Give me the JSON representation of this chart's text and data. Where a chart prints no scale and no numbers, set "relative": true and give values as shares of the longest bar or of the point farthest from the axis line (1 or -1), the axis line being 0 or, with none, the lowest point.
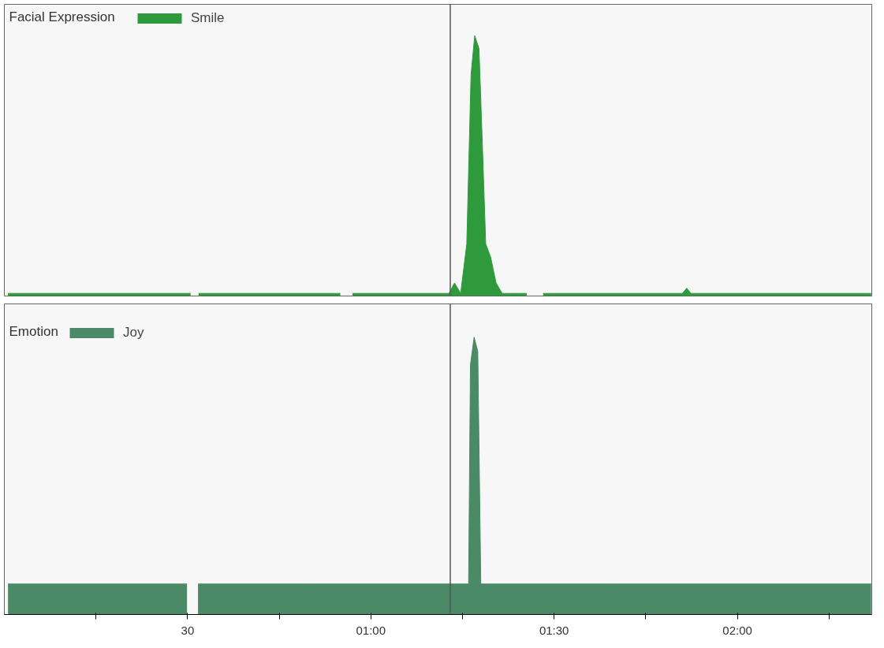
{
  "chart_data": [
    {
      "type": "area",
      "title": "Facial Expression",
      "relative": true,
      "legend": "top left",
      "tick_labels": false,
      "xlim": [
        0,
        142
      ],
      "x": [
        0.6,
        10,
        20,
        30.5,
        31.1,
        31.8,
        40,
        50,
        55,
        56,
        57,
        65,
        72.8,
        73.7,
        74.7,
        75.7,
        76.4,
        77,
        77.7,
        78.3,
        78.8,
        79.6,
        80.5,
        81.5,
        85.5,
        86.5,
        88.2,
        100,
        111,
        111.7,
        112.4,
        125,
        141.9
      ],
      "series": [
        {
          "name": "Smile",
          "color": "#2f9a3c",
          "values": [
            0.01,
            0.01,
            0.01,
            0.01,
            null,
            0.01,
            0.01,
            0.01,
            0.01,
            null,
            0.01,
            0.01,
            0.01,
            0.05,
            0.01,
            0.2,
            0.85,
            1.0,
            0.95,
            0.55,
            0.2,
            0.15,
            0.05,
            0.01,
            0.01,
            null,
            0.01,
            0.01,
            0.01,
            0.03,
            0.01,
            0.01,
            0.01
          ]
        }
      ],
      "ref_lines": [
        {
          "axis": "x",
          "value": 73,
          "color": "#555555"
        }
      ]
    },
    {
      "type": "area",
      "title": "Emotion",
      "relative": true,
      "legend": "top left",
      "tick_labels": "x",
      "xlim": [
        0,
        142
      ],
      "xticks": [
        {
          "value": 15,
          "label": null
        },
        {
          "value": 30,
          "label": "30"
        },
        {
          "value": 45,
          "label": null
        },
        {
          "value": 60,
          "label": "01:00"
        },
        {
          "value": 75,
          "label": null
        },
        {
          "value": 90,
          "label": "01:30"
        },
        {
          "value": 105,
          "label": null
        },
        {
          "value": 120,
          "label": "02:00"
        },
        {
          "value": 135,
          "label": null
        }
      ],
      "x": [
        0.6,
        15,
        29.9,
        30.5,
        31.7,
        50,
        73,
        76,
        76.3,
        76.9,
        77.5,
        78,
        100,
        141.9
      ],
      "series": [
        {
          "name": "Joy",
          "color": "#4a8a66",
          "values": [
            0.11,
            0.11,
            0.11,
            null,
            0.11,
            0.11,
            0.11,
            0.11,
            0.9,
            1.0,
            0.95,
            0.11,
            0.11,
            0.11
          ]
        }
      ],
      "ref_lines": [
        {
          "axis": "x",
          "value": 73,
          "color": "#555555"
        }
      ]
    }
  ]
}
